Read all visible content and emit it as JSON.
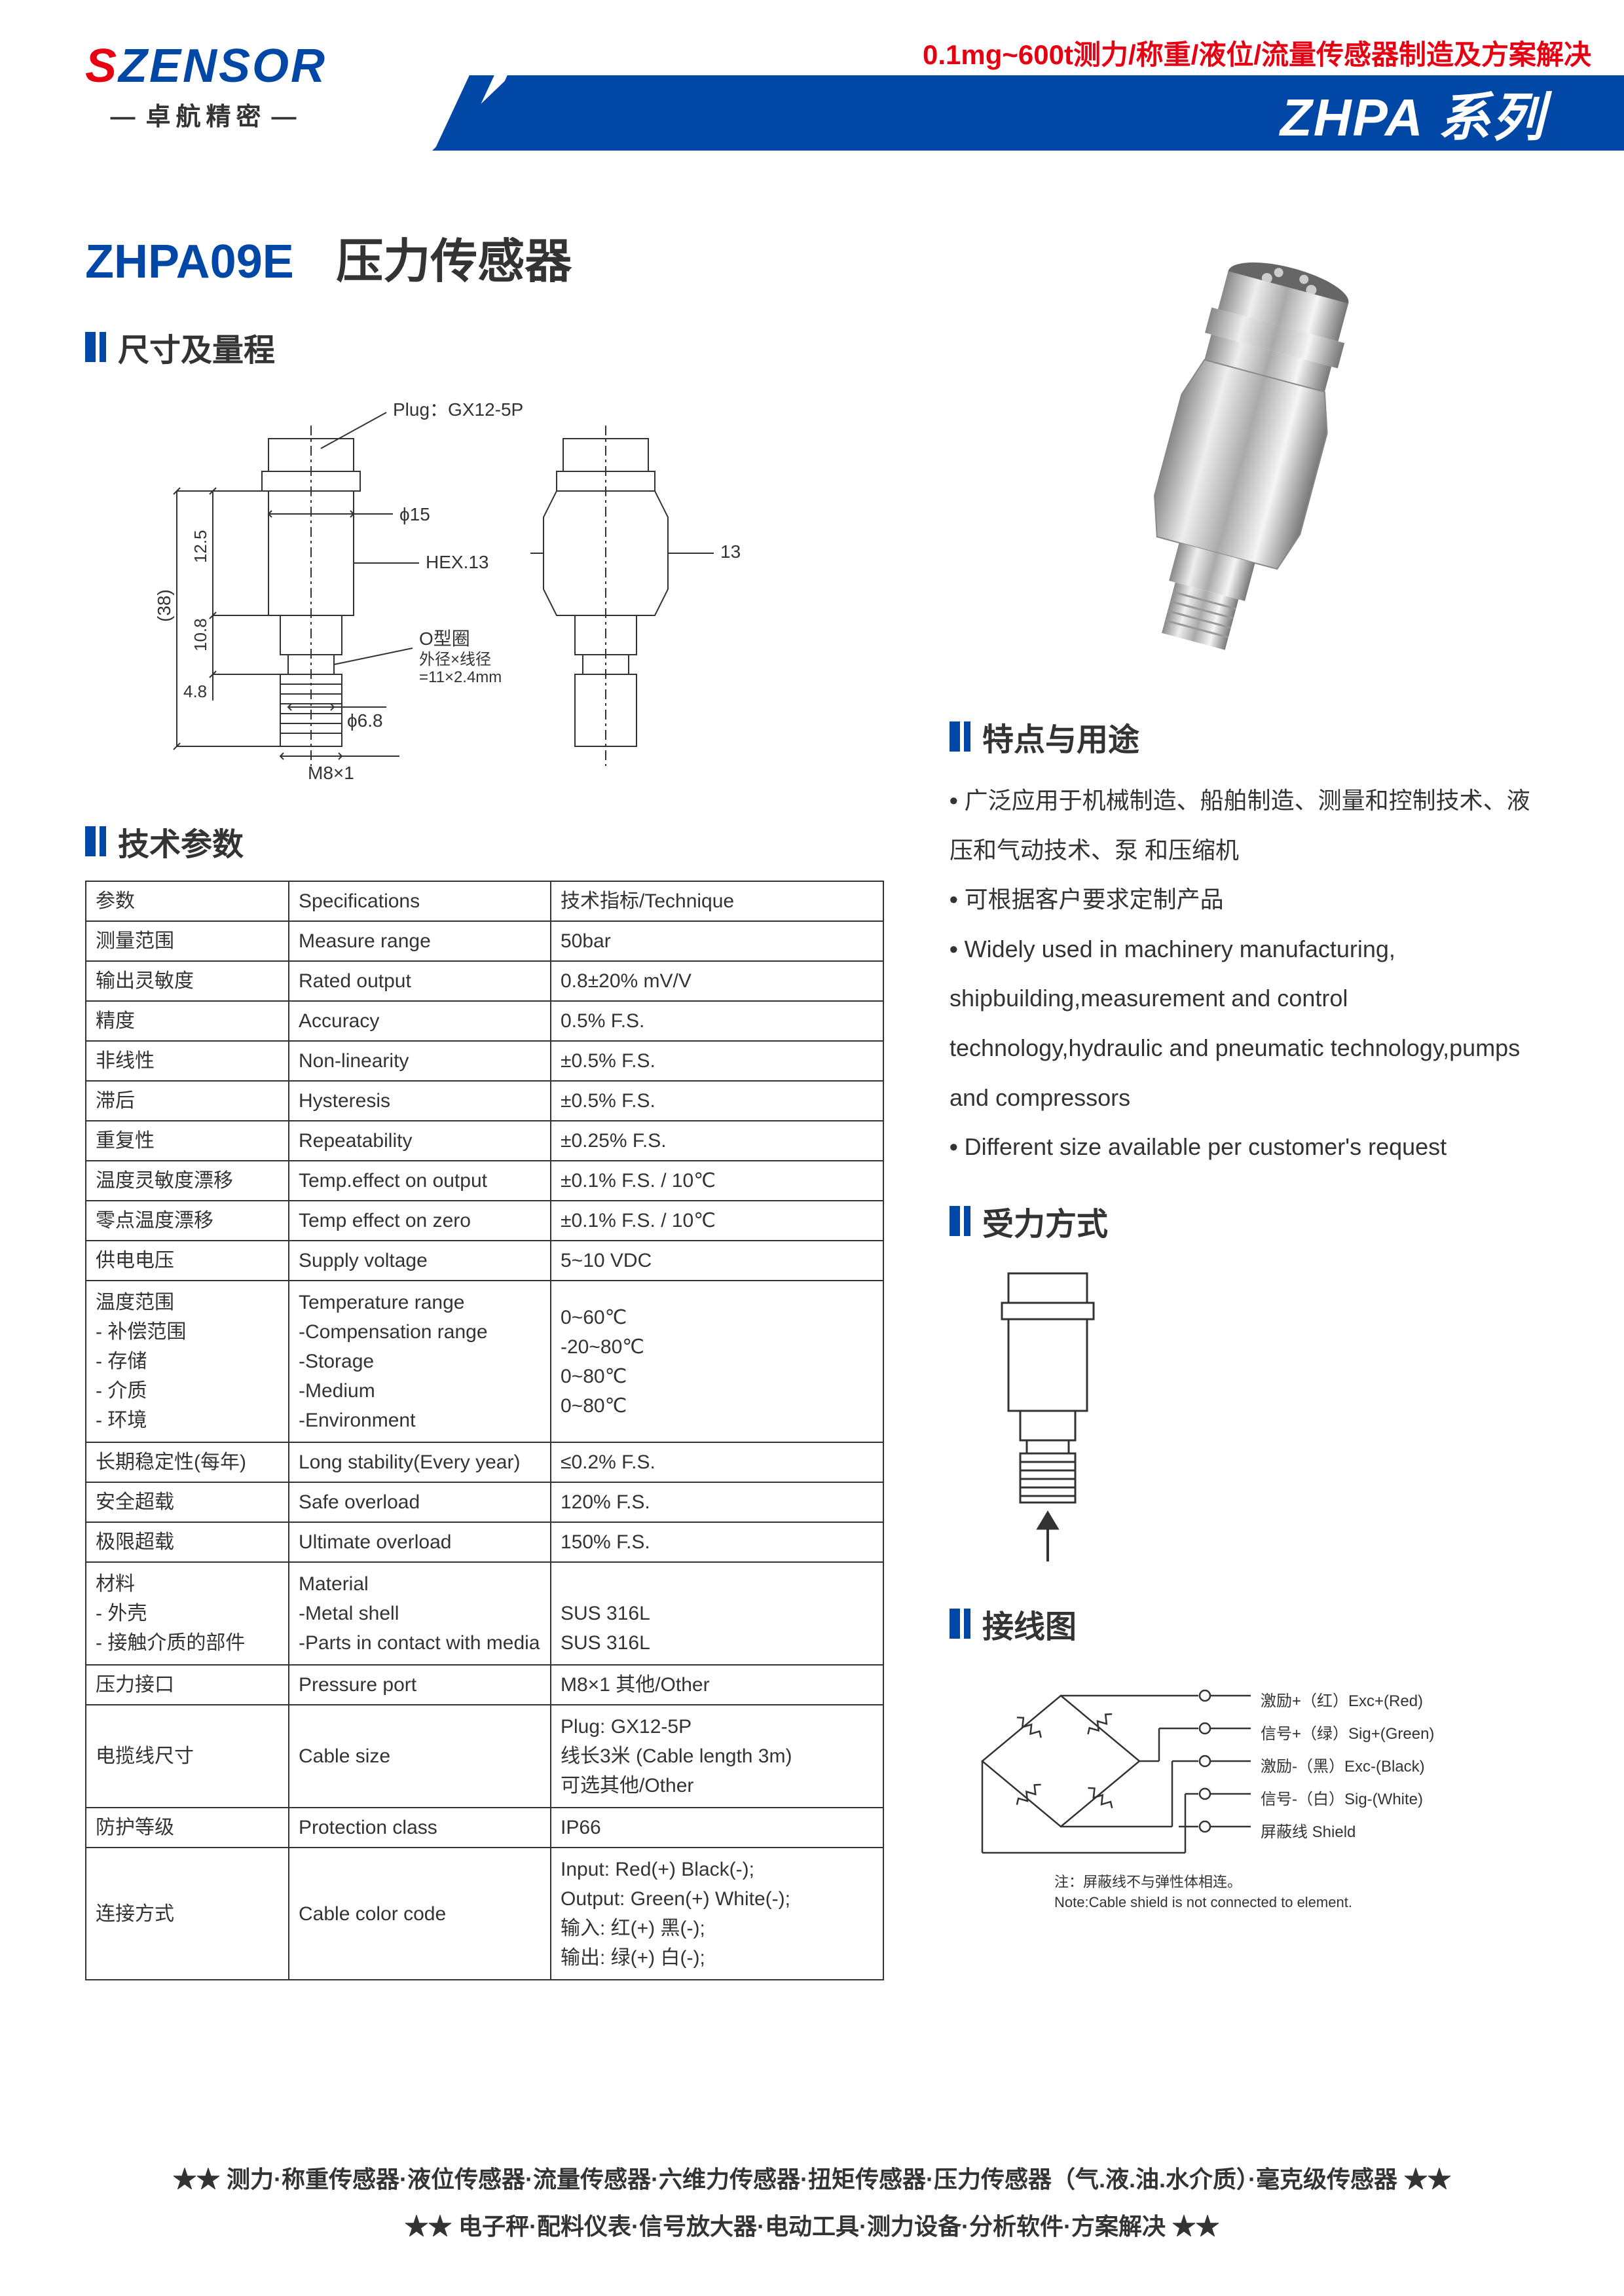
{
  "header": {
    "logo_prefix": "S",
    "logo_main": "ZENSOR",
    "logo_sub": "卓航精密",
    "tagline": "0.1mg~600t测力/称重/液位/流量传感器制造及方案解决",
    "series": "ZHPA 系列"
  },
  "product": {
    "model": "ZHPA09E",
    "name": "压力传感器"
  },
  "sections": {
    "dimensions": "尺寸及量程",
    "specs": "技术参数",
    "features": "特点与用途",
    "force": "受力方式",
    "wiring": "接线图"
  },
  "dimension_labels": {
    "plug": "Plug：GX12-5P",
    "d15": "ϕ15",
    "hex": "HEX.13",
    "side13": "13",
    "h38": "(38)",
    "h125": "12.5",
    "h108": "10.8",
    "h48": "4.8",
    "oring": "O型圈",
    "oring_size": "外径×线径\n=11×2.4mm",
    "d68": "ϕ6.8",
    "thread": "M8×1"
  },
  "spec_table": {
    "header": [
      "参数",
      "Specifications",
      "技术指标/Technique"
    ],
    "rows": [
      [
        "测量范围",
        "Measure range",
        "50bar"
      ],
      [
        "输出灵敏度",
        "Rated output",
        "0.8±20% mV/V"
      ],
      [
        "精度",
        "Accuracy",
        "0.5% F.S."
      ],
      [
        "非线性",
        "Non-linearity",
        "±0.5% F.S."
      ],
      [
        "滞后",
        "Hysteresis",
        "±0.5% F.S."
      ],
      [
        "重复性",
        "Repeatability",
        "±0.25% F.S."
      ],
      [
        "温度灵敏度漂移",
        "Temp.effect on output",
        "±0.1% F.S. / 10℃"
      ],
      [
        "零点温度漂移",
        "Temp effect on zero",
        "±0.1% F.S. / 10℃"
      ],
      [
        "供电电压",
        "Supply voltage",
        "5~10 VDC"
      ],
      [
        "温度范围\n - 补偿范围\n - 存储\n - 介质\n - 环境",
        "Temperature range\n-Compensation range\n-Storage\n-Medium\n-Environment",
        "0~60℃\n-20~80℃\n0~80℃\n0~80℃"
      ],
      [
        "长期稳定性(每年)",
        "Long stability(Every year)",
        "≤0.2% F.S."
      ],
      [
        "安全超载",
        "Safe overload",
        "120% F.S."
      ],
      [
        "极限超载",
        "Ultimate overload",
        "150% F.S."
      ],
      [
        "材料\n - 外壳\n  - 接触介质的部件",
        "Material\n-Metal shell\n-Parts in contact with media",
        "\nSUS 316L\nSUS 316L"
      ],
      [
        "压力接口",
        "Pressure port",
        "M8×1  其他/Other"
      ],
      [
        "电揽线尺寸",
        "Cable size",
        "Plug: GX12-5P\n线长3米 (Cable length 3m)\n可选其他/Other"
      ],
      [
        "防护等级",
        "Protection class",
        "IP66"
      ],
      [
        "连接方式",
        "Cable color code",
        "Input:  Red(+)            Black(-);\nOutput: Green(+)     White(-);\n输入:  红(+)             黑(-);\n输出:  绿(+)             白(-);"
      ]
    ]
  },
  "features": [
    "广泛应用于机械制造、船舶制造、测量和控制技术、液压和气动技术、泵 和压缩机",
    "可根据客户要求定制产品",
    "Widely used in machinery manufacturing, shipbuilding,measurement and control technology,hydraulic and pneumatic technology,pumps and compressors",
    "Different size available per customer's request"
  ],
  "wiring": {
    "labels": [
      "激励+（红）Exc+(Red)",
      "信号+（绿）Sig+(Green)",
      "激励-（黑）Exc-(Black)",
      "信号-（白）Sig-(White)",
      "屏蔽线 Shield"
    ],
    "note_cn": "注：屏蔽线不与弹性体相连。",
    "note_en": "Note:Cable shield is not connected to element."
  },
  "footer": {
    "line1": "★★ 测力·称重传感器·液位传感器·流量传感器·六维力传感器·扭矩传感器·压力传感器（气.液.油.水介质）·毫克级传感器 ★★",
    "line2": "★★ 电子秤·配料仪表·信号放大器·电动工具·测力设备·分析软件·方案解决 ★★"
  },
  "colors": {
    "brand_blue": "#0047a6",
    "brand_red": "#e60012",
    "text": "#333333",
    "border": "#333333",
    "background": "#ffffff"
  }
}
